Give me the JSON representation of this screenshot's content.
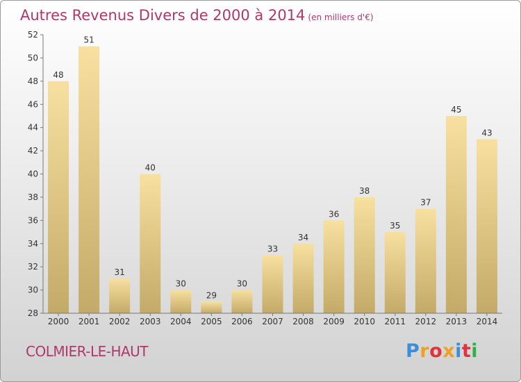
{
  "header": {
    "title": "Autres Revenus Divers de 2000 à 2014",
    "unit": "(en milliers d'€)"
  },
  "footer": {
    "commune": "COLMIER-LE-HAUT",
    "logo": {
      "letters": [
        "P",
        "r",
        "o",
        "x",
        "i",
        "t",
        "i"
      ],
      "colors": [
        "#3a8fd6",
        "#f0a020",
        "#e0343c",
        "#f0a020",
        "#3a8fd6",
        "#e0343c",
        "#2db24a"
      ]
    }
  },
  "chart_data": {
    "type": "bar",
    "categories": [
      "2000",
      "2001",
      "2002",
      "2003",
      "2004",
      "2005",
      "2006",
      "2007",
      "2008",
      "2009",
      "2010",
      "2011",
      "2012",
      "2013",
      "2014"
    ],
    "values": [
      48,
      51,
      31,
      40,
      30,
      29,
      30,
      33,
      34,
      36,
      38,
      35,
      37,
      45,
      43
    ],
    "ylim": [
      28,
      52
    ],
    "yticks": [
      28,
      30,
      32,
      34,
      36,
      38,
      40,
      42,
      44,
      46,
      48,
      50,
      52
    ],
    "grid": false,
    "bar_color_top": "#f7e0a0",
    "bar_color_bottom": "#c4aa68"
  }
}
